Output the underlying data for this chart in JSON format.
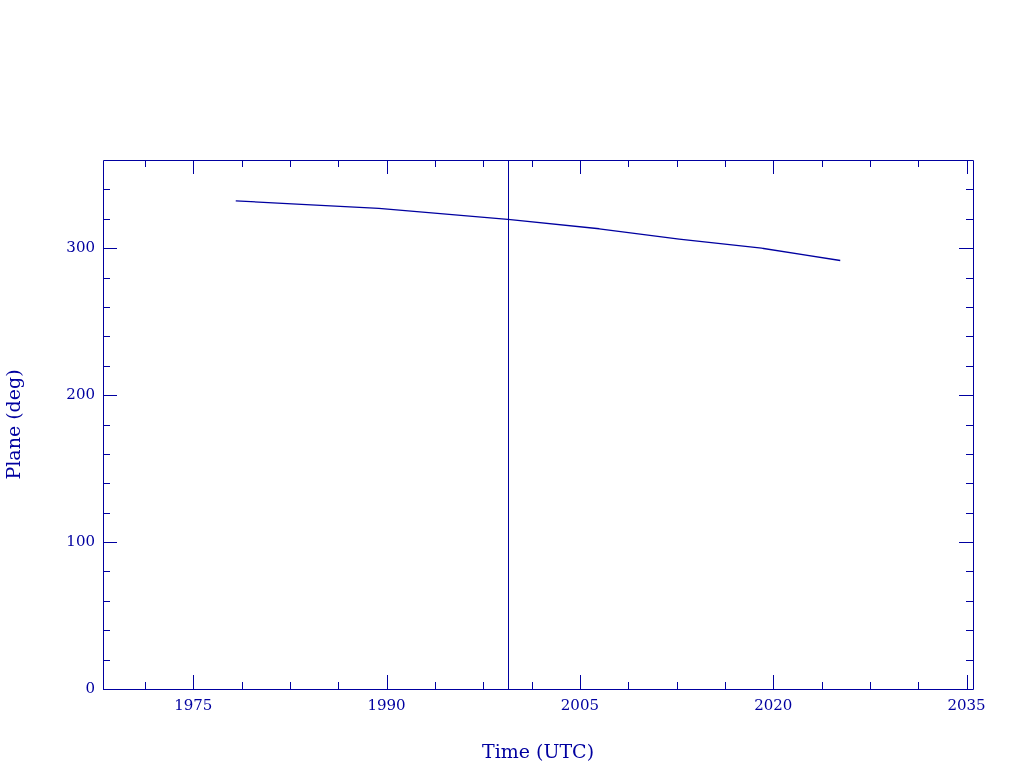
{
  "chart_data": {
    "type": "line",
    "xlabel": "Time (UTC)",
    "ylabel": "Plane (deg)",
    "xlim": [
      1968,
      2035.5
    ],
    "xticks": [
      {
        "value": 1971.25,
        "label": null
      },
      1975,
      {
        "value": 1978.75,
        "label": null
      },
      {
        "value": 1982.5,
        "label": null
      },
      {
        "value": 1986.25,
        "label": null
      },
      1990,
      {
        "value": 1993.75,
        "label": null
      },
      {
        "value": 1997.5,
        "label": null
      },
      {
        "value": 2001.25,
        "label": null
      },
      2005,
      {
        "value": 2008.75,
        "label": null
      },
      {
        "value": 2012.5,
        "label": null
      },
      {
        "value": 2016.25,
        "label": null
      },
      2020,
      {
        "value": 2023.75,
        "label": null
      },
      {
        "value": 2027.5,
        "label": null
      },
      {
        "value": 2031.25,
        "label": null
      },
      2035
    ],
    "ylim": [
      0,
      360
    ],
    "yticks": [
      0,
      {
        "value": 20,
        "label": null
      },
      {
        "value": 40,
        "label": null
      },
      {
        "value": 60,
        "label": null
      },
      {
        "value": 80,
        "label": null
      },
      100,
      {
        "value": 120,
        "label": null
      },
      {
        "value": 140,
        "label": null
      },
      {
        "value": 160,
        "label": null
      },
      {
        "value": 180,
        "label": null
      },
      200,
      {
        "value": 220,
        "label": null
      },
      {
        "value": 240,
        "label": null
      },
      {
        "value": 260,
        "label": null
      },
      {
        "value": 280,
        "label": null
      },
      300,
      {
        "value": 320,
        "label": null
      },
      {
        "value": 340,
        "label": null
      }
    ],
    "series": [
      {
        "color": "#0000a0",
        "x": [
          1978.3,
          1983.4,
          1989.4,
          1999.4,
          2006.5,
          2012.7,
          2019.1,
          2025.2
        ],
        "values": [
          332.2,
          329.8,
          327.1,
          319.6,
          313.2,
          306.1,
          300,
          291.6
        ]
      }
    ],
    "ref_lines": [
      {
        "axis": "x",
        "value": 1999.4,
        "color": "#0000a0"
      }
    ],
    "grid": false,
    "legend": false,
    "marker": "none",
    "line_style": "solid"
  }
}
